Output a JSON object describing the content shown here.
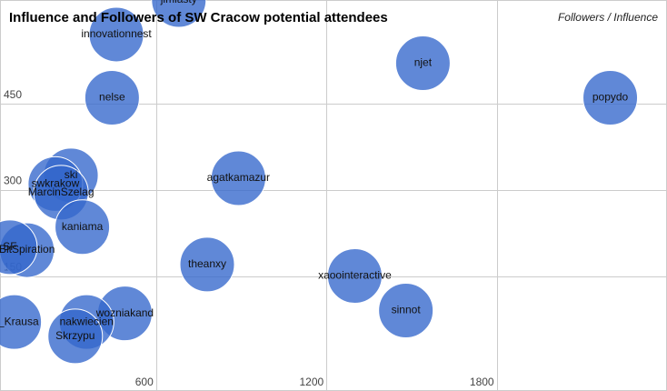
{
  "chart_data": {
    "type": "bubble",
    "title": "Influence and Followers of SW Cracow potential attendees",
    "legend": "Followers / Influence",
    "legend_position": "top-right",
    "grid": true,
    "xlim": [
      50,
      2400
    ],
    "ylim": [
      -50,
      630
    ],
    "x_ticks": [
      {
        "value": 600,
        "label": "600"
      },
      {
        "value": 1200,
        "label": "1200"
      },
      {
        "value": 1800,
        "label": "1800"
      }
    ],
    "y_ticks": [
      {
        "value": 150,
        "label": "150"
      },
      {
        "value": 300,
        "label": "300"
      },
      {
        "value": 450,
        "label": "450"
      }
    ],
    "points": [
      {
        "label": "njet",
        "x": 1540,
        "y": 520
      },
      {
        "label": "popydo",
        "x": 2200,
        "y": 460
      },
      {
        "label": "innovationnest",
        "x": 460,
        "y": 570
      },
      {
        "label": "jimiasty",
        "x": 680,
        "y": 630
      },
      {
        "label": "nelse",
        "x": 445,
        "y": 460
      },
      {
        "label": "agatkamazur",
        "x": 890,
        "y": 320
      },
      {
        "label": "theanxy",
        "x": 780,
        "y": 170
      },
      {
        "label": "xaoointeractive",
        "x": 1300,
        "y": 150
      },
      {
        "label": "sinnot",
        "x": 1480,
        "y": 90
      },
      {
        "label": "ski",
        "x": 300,
        "y": 325
      },
      {
        "label": "swkrakow",
        "x": 245,
        "y": 310
      },
      {
        "label": "MarcinSzelag",
        "x": 265,
        "y": 295
      },
      {
        "label": "kaniama",
        "x": 340,
        "y": 235
      },
      {
        "label": "BitSpiration",
        "x": 145,
        "y": 195
      },
      {
        "label": "SF",
        "x": 85,
        "y": 200
      },
      {
        "label": "wozniakand",
        "x": 490,
        "y": 85
      },
      {
        "label": "nakwiecien",
        "x": 355,
        "y": 70
      },
      {
        "label": "Skrzypu",
        "x": 315,
        "y": 45
      },
      {
        "label": "al_Krausa",
        "x": 100,
        "y": 70
      }
    ]
  }
}
